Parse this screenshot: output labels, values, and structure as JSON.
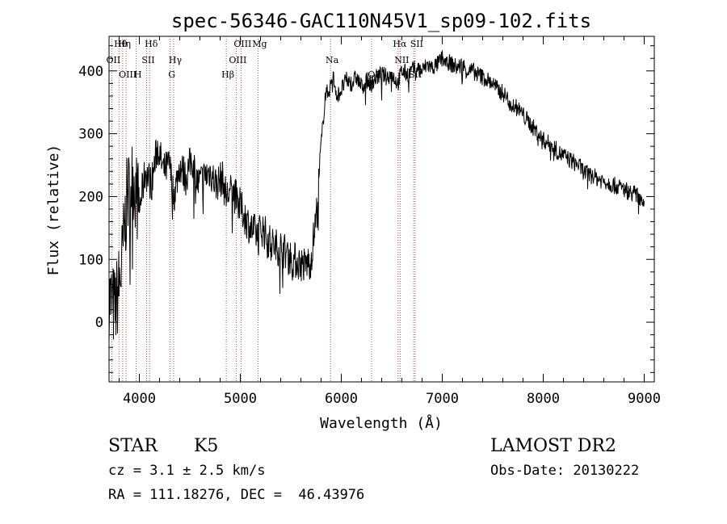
{
  "chart_data": {
    "type": "line",
    "title": "spec-56346-GAC110N45V1_sp09-102.fits",
    "xlabel": "Wavelength (Å)",
    "ylabel": "Flux (relative)",
    "xlim": [
      3700,
      9100
    ],
    "ylim": [
      -95,
      455
    ],
    "x_ticks": [
      4000,
      5000,
      6000,
      7000,
      8000,
      9000
    ],
    "y_ticks": [
      0,
      100,
      200,
      300,
      400
    ],
    "grid": false,
    "series": [
      {
        "x": [
          3700,
          3760,
          3820,
          3880,
          3940,
          4000,
          4060,
          4120,
          4180,
          4240,
          4300,
          4340,
          4400,
          4460,
          4520,
          4580,
          4640,
          4700,
          4760,
          4820,
          4860,
          4920,
          4980,
          5040,
          5100,
          5160,
          5220,
          5280,
          5340,
          5400,
          5460,
          5520,
          5580,
          5640,
          5700,
          5760,
          5800,
          5840,
          5880,
          5920,
          5960,
          6000,
          6050,
          6100,
          6150,
          6200,
          6250,
          6300,
          6350,
          6400,
          6450,
          6500,
          6560,
          6600,
          6650,
          6700,
          6750,
          6800,
          6850,
          6900,
          6950,
          7000,
          7050,
          7100,
          7150,
          7200,
          7250,
          7300,
          7350,
          7400,
          7450,
          7500,
          7550,
          7600,
          7650,
          7700,
          7750,
          7800,
          7850,
          7900,
          7950,
          8000,
          8050,
          8100,
          8150,
          8200,
          8250,
          8300,
          8350,
          8400,
          8450,
          8500,
          8550,
          8600,
          8650,
          8700,
          8750,
          8800,
          8850,
          8900,
          8950,
          9000
        ],
        "y": [
          40,
          20,
          80,
          200,
          230,
          180,
          240,
          220,
          280,
          240,
          250,
          200,
          250,
          230,
          260,
          220,
          230,
          240,
          220,
          230,
          200,
          210,
          190,
          170,
          150,
          140,
          150,
          130,
          120,
          120,
          110,
          100,
          95,
          90,
          100,
          180,
          280,
          360,
          370,
          390,
          360,
          370,
          385,
          380,
          390,
          375,
          385,
          380,
          390,
          395,
          390,
          395,
          380,
          400,
          395,
          400,
          405,
          400,
          410,
          405,
          410,
          420,
          415,
          410,
          405,
          410,
          400,
          400,
          395,
          390,
          385,
          380,
          370,
          365,
          355,
          345,
          340,
          330,
          320,
          310,
          300,
          290,
          285,
          280,
          270,
          265,
          260,
          255,
          250,
          240,
          235,
          232,
          228,
          225,
          222,
          218,
          215,
          212,
          208,
          205,
          200,
          195
        ]
      }
    ],
    "lines": [
      {
        "label": "Hθ",
        "x": 3798
      },
      {
        "label": "OII",
        "x": 3727
      },
      {
        "label": "OIII",
        "x": 3869
      },
      {
        "label": "Hη",
        "x": 3835
      },
      {
        "label": "SII",
        "x": 4072
      },
      {
        "label": "H",
        "x": 3969
      },
      {
        "label": "Hδ",
        "x": 4102
      },
      {
        "label": "Hγ",
        "x": 4340
      },
      {
        "label": "G",
        "x": 4305
      },
      {
        "label": "OIII",
        "x": 5007
      },
      {
        "label": "OIII",
        "x": 4959
      },
      {
        "label": "Hβ",
        "x": 4861
      },
      {
        "label": "Mg",
        "x": 5175
      },
      {
        "label": "Na",
        "x": 5893
      },
      {
        "label": "OI",
        "x": 6300
      },
      {
        "label": "Hα",
        "x": 6563
      },
      {
        "label": "NII",
        "x": 6583
      },
      {
        "label": "SII",
        "x": 6717
      },
      {
        "label": "SII",
        "x": 6731
      }
    ]
  },
  "info": {
    "class": "STAR",
    "subclass": "K5",
    "survey": "LAMOST DR2",
    "cz": "cz = 3.1 ± 2.5 km/s",
    "obs_date": "Obs-Date: 20130222",
    "radec": "RA = 111.18276, DEC =  46.43976"
  }
}
